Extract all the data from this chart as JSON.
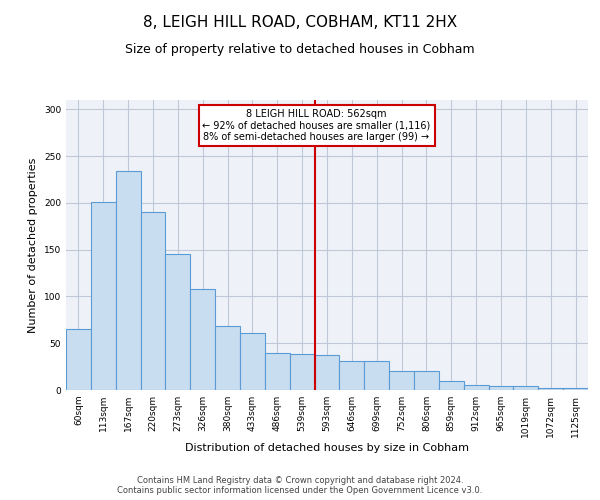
{
  "title": "8, LEIGH HILL ROAD, COBHAM, KT11 2HX",
  "subtitle": "Size of property relative to detached houses in Cobham",
  "xlabel": "Distribution of detached houses by size in Cobham",
  "ylabel": "Number of detached properties",
  "footer_line1": "Contains HM Land Registry data © Crown copyright and database right 2024.",
  "footer_line2": "Contains public sector information licensed under the Open Government Licence v3.0.",
  "categories": [
    "60sqm",
    "113sqm",
    "167sqm",
    "220sqm",
    "273sqm",
    "326sqm",
    "380sqm",
    "433sqm",
    "486sqm",
    "539sqm",
    "593sqm",
    "646sqm",
    "699sqm",
    "752sqm",
    "806sqm",
    "859sqm",
    "912sqm",
    "965sqm",
    "1019sqm",
    "1072sqm",
    "1125sqm"
  ],
  "values": [
    65,
    201,
    234,
    190,
    145,
    108,
    68,
    61,
    40,
    38,
    37,
    31,
    31,
    20,
    20,
    10,
    5,
    4,
    4,
    2,
    2
  ],
  "bar_color": "#c9ddf0",
  "bar_edge_color": "#5b9bd5",
  "bar_linewidth": 0.8,
  "vline_x_index": 9.5,
  "vline_color": "#cc0000",
  "annotation_text": "8 LEIGH HILL ROAD: 562sqm\n← 92% of detached houses are smaller (1,116)\n8% of semi-detached houses are larger (99) →",
  "annotation_box_color": "#cc0000",
  "ylim": [
    0,
    310
  ],
  "yticks": [
    0,
    50,
    100,
    150,
    200,
    250,
    300
  ],
  "grid_color": "#c0c8d8",
  "bg_color": "#eef2f8",
  "title_fontsize": 11,
  "subtitle_fontsize": 9,
  "axis_label_fontsize": 8,
  "tick_fontsize": 6.5,
  "footer_fontsize": 6
}
